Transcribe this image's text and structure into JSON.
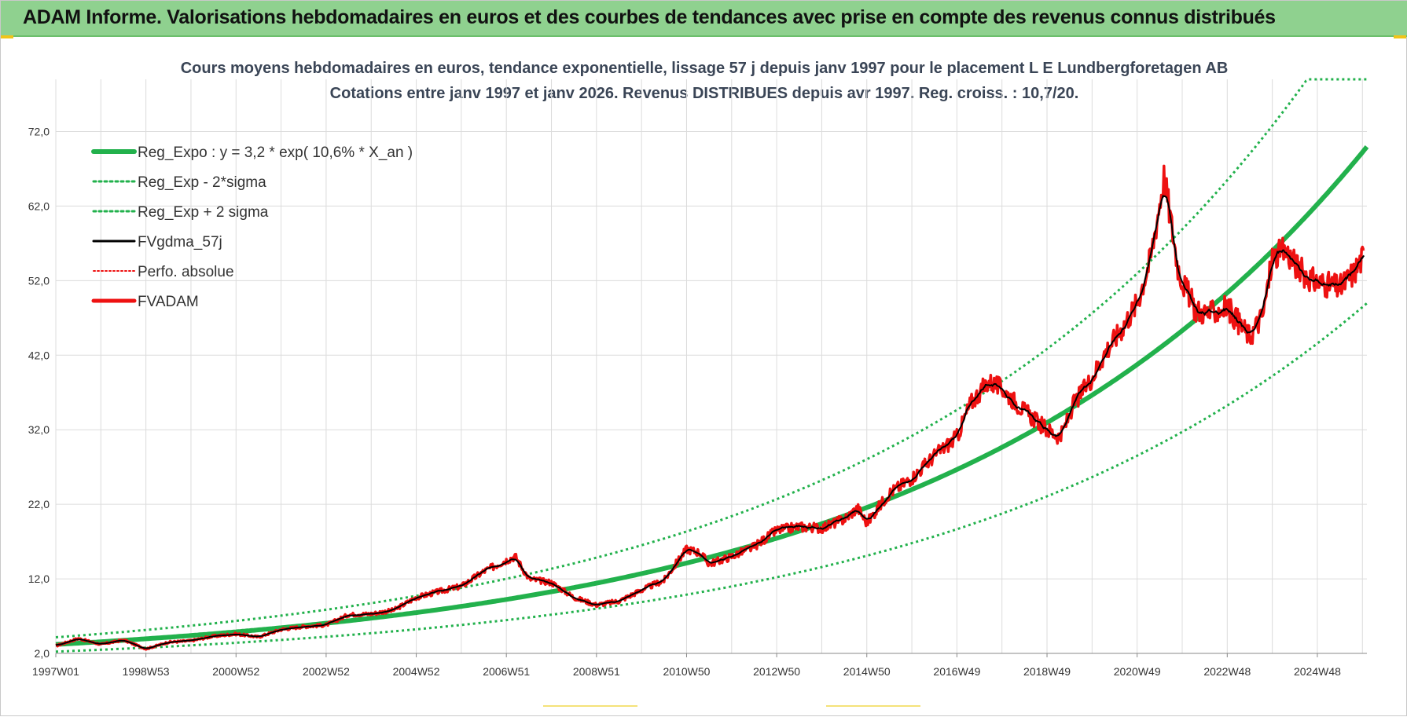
{
  "header": {
    "title": "ADAM Informe. Valorisations hebdomadaires en euros et des courbes de tendances avec prise en compte des revenus connus distribués"
  },
  "colors": {
    "header_bg": "#8fd18f",
    "trend": "#22b14c",
    "price": "#ee1111",
    "smooth": "#000000",
    "grid": "#dcdcdc"
  },
  "chart_data": {
    "type": "line",
    "title": "Cours moyens hebdomadaires en euros, tendance exponentielle, lissage 57 j depuis janv 1997 pour le placement L E Lundbergforetagen AB",
    "subtitle": "Cotations entre janv 1997 et janv 2026. Revenus DISTRIBUES depuis avr 1997.  Reg. croiss. : 10,7/20.",
    "xlabel": "",
    "ylabel": "",
    "xlim": [
      1997.0,
      2026.1
    ],
    "ylim": [
      2.0,
      79.0
    ],
    "grid": true,
    "legend_position": "top-left",
    "y_ticks": [
      "2,0",
      "12,0",
      "22,0",
      "32,0",
      "42,0",
      "52,0",
      "62,0",
      "72,0"
    ],
    "y_tick_values": [
      2,
      12,
      22,
      32,
      42,
      52,
      62,
      72
    ],
    "x_ticks": [
      "1997W01",
      "1998W53",
      "2000W52",
      "2002W52",
      "2004W52",
      "2006W51",
      "2008W51",
      "2010W50",
      "2012W50",
      "2014W50",
      "2016W49",
      "2018W49",
      "2020W49",
      "2022W48",
      "2024W48"
    ],
    "x_tick_positions": [
      1997.0,
      1999.0,
      2001.0,
      2003.0,
      2005.0,
      2007.0,
      2009.0,
      2011.0,
      2013.0,
      2015.0,
      2017.0,
      2019.0,
      2021.0,
      2023.0,
      2025.0
    ],
    "trend": {
      "a": 3.2,
      "r": 0.106,
      "sigma_factor": 0.3
    },
    "series": [
      {
        "name": "Reg_Expo : y = 3,2 * exp( 10,6% *  X_an )",
        "style": "trend"
      },
      {
        "name": "Reg_Exp - 2*sigma",
        "style": "lower"
      },
      {
        "name": "Reg_Exp + 2 sigma",
        "style": "upper"
      },
      {
        "name": "FVgdma_57j",
        "style": "smooth"
      },
      {
        "name": "Perfo. absolue",
        "style": "perfo"
      },
      {
        "name": "FVADAM",
        "style": "price",
        "x": [
          1997.0,
          1997.5,
          1998.0,
          1998.5,
          1999.0,
          1999.5,
          2000.0,
          2000.5,
          2001.0,
          2001.5,
          2002.0,
          2002.5,
          2003.0,
          2003.5,
          2004.0,
          2004.5,
          2005.0,
          2005.5,
          2006.0,
          2006.5,
          2007.0,
          2007.2,
          2007.5,
          2008.0,
          2008.5,
          2009.0,
          2009.5,
          2010.0,
          2010.5,
          2011.0,
          2011.3,
          2011.5,
          2012.0,
          2012.5,
          2013.0,
          2013.5,
          2014.0,
          2014.5,
          2014.8,
          2015.0,
          2015.5,
          2016.0,
          2016.5,
          2017.0,
          2017.3,
          2017.7,
          2018.0,
          2018.5,
          2019.0,
          2019.3,
          2019.6,
          2020.0,
          2020.3,
          2020.6,
          2021.0,
          2021.3,
          2021.6,
          2021.9,
          2022.0,
          2022.3,
          2022.6,
          2023.0,
          2023.3,
          2023.5,
          2023.8,
          2024.0,
          2024.3,
          2024.6,
          2024.9,
          2025.2,
          2025.5,
          2025.8,
          2026.05
        ],
        "values": [
          3.0,
          4.0,
          3.2,
          3.8,
          2.6,
          3.5,
          3.7,
          4.3,
          4.6,
          4.2,
          5.2,
          5.6,
          5.8,
          7.2,
          7.3,
          7.8,
          9.5,
          10.3,
          11.0,
          13.0,
          14.5,
          15.0,
          12.0,
          11.5,
          9.5,
          8.5,
          9.0,
          10.5,
          11.8,
          16.0,
          15.5,
          14.0,
          15.0,
          16.3,
          18.5,
          19.0,
          18.8,
          20.0,
          21.5,
          19.5,
          23.5,
          25.5,
          28.5,
          31.0,
          35.5,
          38.5,
          37.5,
          34.5,
          32.0,
          31.0,
          35.5,
          39.0,
          42.5,
          45.0,
          49.0,
          55.0,
          66.0,
          54.0,
          52.0,
          48.0,
          47.5,
          48.5,
          46.0,
          44.5,
          47.5,
          55.0,
          56.0,
          53.5,
          52.0,
          51.5,
          51.0,
          53.0,
          55.5
        ]
      }
    ]
  }
}
